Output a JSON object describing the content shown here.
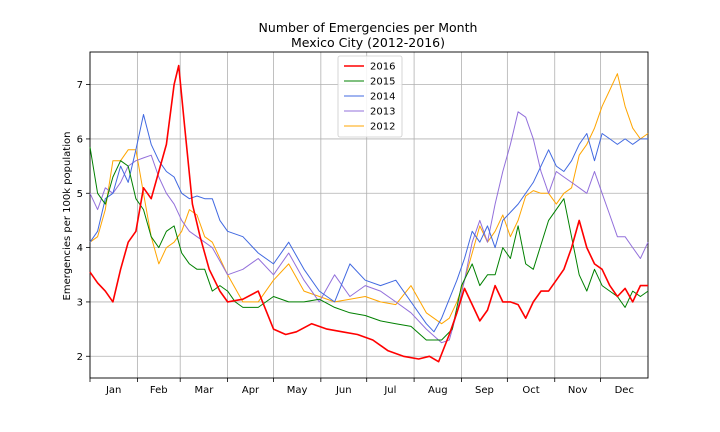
{
  "chart_data": {
    "type": "line",
    "title": "Number of Emergencies per Month",
    "subtitle": "Mexico City (2012-2016)",
    "xlabel": "",
    "ylabel": "Emergencies per 100k population",
    "xlim": [
      0,
      365
    ],
    "ylim": [
      1.6,
      7.6
    ],
    "yticks": [
      2,
      3,
      4,
      5,
      6,
      7
    ],
    "month_ticks": [
      0,
      31,
      59,
      90,
      120,
      151,
      181,
      212,
      243,
      273,
      304,
      334
    ],
    "month_labels": [
      "Jan",
      "Feb",
      "Mar",
      "Apr",
      "May",
      "Jun",
      "Jul",
      "Aug",
      "Sep",
      "Oct",
      "Nov",
      "Dec"
    ],
    "grid": true,
    "legend_position": "top-center",
    "series": [
      {
        "name": "2016",
        "color": "#ff0000",
        "x": [
          0,
          5,
          10,
          15,
          20,
          25,
          30,
          35,
          40,
          45,
          50,
          55,
          58,
          62,
          67,
          72,
          78,
          85,
          90,
          100,
          110,
          120,
          128,
          135,
          145,
          155,
          165,
          175,
          185,
          195,
          205,
          215,
          222,
          228,
          235,
          240,
          245,
          250,
          255,
          260,
          265,
          270,
          275,
          280,
          285,
          290,
          295,
          300,
          305,
          310,
          315,
          320,
          325,
          330,
          335,
          340,
          345,
          350,
          355,
          360,
          365
        ],
        "values": [
          3.55,
          3.35,
          3.2,
          3.0,
          3.6,
          4.1,
          4.3,
          5.1,
          4.9,
          5.4,
          5.9,
          7.0,
          7.35,
          6.2,
          4.8,
          4.2,
          3.6,
          3.2,
          3.0,
          3.05,
          3.2,
          2.5,
          2.4,
          2.45,
          2.6,
          2.5,
          2.45,
          2.4,
          2.3,
          2.1,
          2.0,
          1.95,
          2.0,
          1.9,
          2.4,
          2.8,
          3.25,
          2.95,
          2.65,
          2.85,
          3.3,
          3.0,
          3.0,
          2.95,
          2.7,
          3.0,
          3.2,
          3.2,
          3.4,
          3.6,
          4.0,
          4.5,
          4.0,
          3.7,
          3.6,
          3.3,
          3.1,
          3.25,
          3.0,
          3.3,
          3.3
        ]
      },
      {
        "name": "2015",
        "color": "#008000",
        "x": [
          0,
          5,
          10,
          15,
          20,
          25,
          30,
          35,
          40,
          45,
          50,
          55,
          60,
          65,
          70,
          75,
          80,
          85,
          90,
          95,
          100,
          110,
          120,
          130,
          140,
          150,
          160,
          170,
          180,
          190,
          200,
          210,
          220,
          230,
          237,
          243,
          250,
          255,
          260,
          265,
          270,
          275,
          280,
          285,
          290,
          300,
          310,
          320,
          325,
          330,
          335,
          340,
          345,
          350,
          355,
          360,
          365
        ],
        "values": [
          5.85,
          5.0,
          4.8,
          5.3,
          5.6,
          5.5,
          4.9,
          4.7,
          4.2,
          4.0,
          4.3,
          4.4,
          3.9,
          3.7,
          3.6,
          3.6,
          3.2,
          3.3,
          3.2,
          3.0,
          2.9,
          2.9,
          3.1,
          3.0,
          3.0,
          3.05,
          2.9,
          2.8,
          2.75,
          2.65,
          2.6,
          2.55,
          2.3,
          2.3,
          2.5,
          3.3,
          3.7,
          3.3,
          3.5,
          3.5,
          4.0,
          3.8,
          4.4,
          3.7,
          3.6,
          4.5,
          4.9,
          3.5,
          3.2,
          3.6,
          3.3,
          3.2,
          3.1,
          2.9,
          3.2,
          3.1,
          3.2
        ]
      },
      {
        "name": "2014",
        "color": "#4169e1",
        "x": [
          0,
          5,
          10,
          15,
          20,
          25,
          30,
          35,
          40,
          45,
          50,
          55,
          60,
          65,
          70,
          75,
          80,
          85,
          90,
          100,
          110,
          120,
          130,
          140,
          150,
          160,
          170,
          180,
          190,
          200,
          210,
          220,
          225,
          230,
          240,
          245,
          250,
          255,
          260,
          265,
          270,
          280,
          290,
          300,
          305,
          310,
          315,
          320,
          325,
          330,
          335,
          340,
          345,
          350,
          355,
          360,
          365
        ],
        "values": [
          4.1,
          4.3,
          4.9,
          5.0,
          5.5,
          5.2,
          5.8,
          6.45,
          5.9,
          5.6,
          5.4,
          5.3,
          5.0,
          4.9,
          4.95,
          4.9,
          4.9,
          4.5,
          4.3,
          4.2,
          3.9,
          3.7,
          4.1,
          3.6,
          3.2,
          3.0,
          3.7,
          3.4,
          3.3,
          3.4,
          3.0,
          2.6,
          2.45,
          2.7,
          3.4,
          3.8,
          4.3,
          4.1,
          4.4,
          4.0,
          4.5,
          4.8,
          5.2,
          5.8,
          5.5,
          5.4,
          5.6,
          5.9,
          6.1,
          5.6,
          6.1,
          6.0,
          5.9,
          6.0,
          5.9,
          6.0,
          6.0
        ]
      },
      {
        "name": "2013",
        "color": "#9370db",
        "x": [
          0,
          5,
          10,
          15,
          20,
          25,
          30,
          35,
          40,
          45,
          50,
          55,
          60,
          65,
          70,
          75,
          80,
          90,
          100,
          110,
          120,
          130,
          140,
          150,
          160,
          170,
          180,
          190,
          200,
          210,
          220,
          230,
          235,
          240,
          245,
          250,
          255,
          260,
          265,
          270,
          275,
          280,
          285,
          290,
          295,
          300,
          305,
          310,
          315,
          320,
          325,
          330,
          335,
          340,
          345,
          350,
          355,
          360,
          365
        ],
        "values": [
          5.0,
          4.7,
          5.1,
          5.0,
          5.2,
          5.5,
          5.6,
          5.65,
          5.7,
          5.3,
          5.0,
          4.8,
          4.5,
          4.3,
          4.2,
          4.1,
          4.0,
          3.5,
          3.6,
          3.8,
          3.5,
          3.9,
          3.4,
          3.0,
          3.5,
          3.1,
          3.3,
          3.2,
          3.0,
          2.8,
          2.5,
          2.25,
          2.3,
          2.8,
          3.4,
          4.1,
          4.5,
          4.1,
          4.8,
          5.4,
          5.9,
          6.5,
          6.4,
          6.0,
          5.4,
          5.0,
          5.4,
          5.3,
          5.2,
          5.1,
          5.0,
          5.4,
          5.0,
          4.6,
          4.2,
          4.2,
          4.0,
          3.8,
          4.1
        ]
      },
      {
        "name": "2012",
        "color": "#ffa500",
        "x": [
          0,
          5,
          10,
          15,
          20,
          25,
          30,
          35,
          40,
          45,
          50,
          55,
          60,
          65,
          70,
          75,
          80,
          90,
          100,
          110,
          120,
          130,
          140,
          150,
          160,
          170,
          180,
          190,
          200,
          210,
          220,
          230,
          235,
          240,
          245,
          250,
          255,
          260,
          265,
          270,
          275,
          280,
          285,
          290,
          295,
          300,
          305,
          310,
          315,
          320,
          325,
          330,
          335,
          340,
          345,
          350,
          355,
          360,
          365
        ],
        "values": [
          4.1,
          4.2,
          4.7,
          5.6,
          5.6,
          5.8,
          5.8,
          5.0,
          4.2,
          3.7,
          4.0,
          4.1,
          4.3,
          4.7,
          4.6,
          4.2,
          4.1,
          3.5,
          3.0,
          3.0,
          3.4,
          3.7,
          3.2,
          3.1,
          3.0,
          3.05,
          3.1,
          3.0,
          2.95,
          3.3,
          2.8,
          2.6,
          2.7,
          3.0,
          3.4,
          3.9,
          4.4,
          4.1,
          4.3,
          4.6,
          4.2,
          4.5,
          4.95,
          5.05,
          5.0,
          5.0,
          4.8,
          5.0,
          5.1,
          5.7,
          5.9,
          6.2,
          6.6,
          6.9,
          7.2,
          6.6,
          6.2,
          6.0,
          6.1
        ]
      }
    ]
  }
}
